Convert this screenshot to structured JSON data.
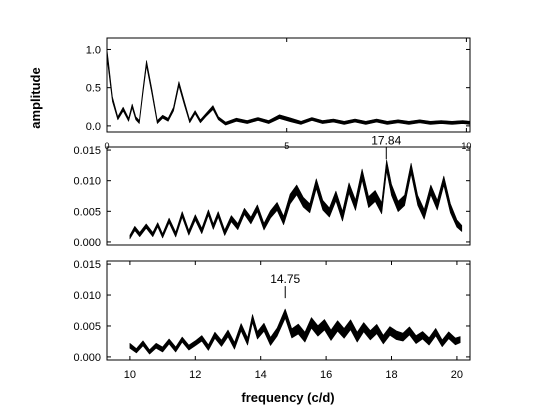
{
  "chart_data": [
    {
      "type": "area",
      "panel": "top",
      "xlim": [
        0,
        10.1
      ],
      "ylim": [
        -0.08,
        1.15
      ],
      "x_ticks": [
        0,
        5,
        10
      ],
      "x_tick_labels": [
        "0",
        "5",
        "10"
      ],
      "y_ticks": [
        0.0,
        0.5,
        1.0
      ],
      "y_tick_labels": [
        "0.0",
        "0.5",
        "1.0"
      ],
      "ylabel": "amplitude",
      "x": [
        0,
        0.05,
        0.15,
        0.3,
        0.45,
        0.6,
        0.7,
        0.8,
        0.9,
        1.0,
        1.1,
        1.25,
        1.4,
        1.55,
        1.7,
        1.85,
        2.0,
        2.15,
        2.3,
        2.45,
        2.6,
        2.75,
        2.95,
        3.1,
        3.3,
        3.6,
        3.9,
        4.2,
        4.5,
        4.8,
        5.1,
        5.4,
        5.7,
        6.0,
        6.3,
        6.6,
        6.9,
        7.2,
        7.5,
        7.8,
        8.1,
        8.4,
        8.7,
        9.0,
        9.3,
        9.6,
        9.9,
        10.1
      ],
      "y": [
        0.95,
        0.75,
        0.35,
        0.1,
        0.22,
        0.08,
        0.26,
        0.1,
        0.05,
        0.45,
        0.82,
        0.45,
        0.05,
        0.12,
        0.08,
        0.22,
        0.55,
        0.3,
        0.06,
        0.18,
        0.06,
        0.14,
        0.24,
        0.1,
        0.03,
        0.08,
        0.05,
        0.09,
        0.05,
        0.12,
        0.08,
        0.04,
        0.09,
        0.05,
        0.07,
        0.04,
        0.07,
        0.04,
        0.07,
        0.04,
        0.06,
        0.04,
        0.06,
        0.04,
        0.05,
        0.04,
        0.05,
        0.04
      ],
      "band": [
        0.1,
        0.1,
        0.06,
        0.04,
        0.05,
        0.04,
        0.05,
        0.04,
        0.04,
        0.06,
        0.07,
        0.06,
        0.04,
        0.04,
        0.04,
        0.05,
        0.06,
        0.05,
        0.04,
        0.04,
        0.04,
        0.04,
        0.05,
        0.04,
        0.04,
        0.04,
        0.04,
        0.04,
        0.04,
        0.05,
        0.05,
        0.04,
        0.04,
        0.04,
        0.04,
        0.04,
        0.04,
        0.04,
        0.04,
        0.04,
        0.04,
        0.04,
        0.04,
        0.04,
        0.04,
        0.04,
        0.04,
        0.04
      ]
    },
    {
      "type": "area",
      "panel": "middle",
      "xlim": [
        9.3,
        20.4
      ],
      "ylim": [
        -0.0005,
        0.0155
      ],
      "y_ticks": [
        0.0,
        0.005,
        0.01,
        0.015
      ],
      "y_tick_labels": [
        "0.000",
        "0.005",
        "0.010",
        "0.015"
      ],
      "annotation": {
        "text": "17.84",
        "x": 17.84,
        "y": 0.0135
      },
      "x": [
        10.0,
        10.15,
        10.3,
        10.5,
        10.7,
        10.85,
        11.0,
        11.2,
        11.4,
        11.6,
        11.8,
        12.0,
        12.2,
        12.4,
        12.55,
        12.7,
        12.9,
        13.1,
        13.3,
        13.5,
        13.7,
        13.9,
        14.1,
        14.3,
        14.5,
        14.7,
        14.9,
        15.1,
        15.3,
        15.5,
        15.7,
        15.9,
        16.1,
        16.3,
        16.5,
        16.7,
        16.9,
        17.1,
        17.3,
        17.5,
        17.7,
        17.85,
        18.0,
        18.2,
        18.4,
        18.6,
        18.8,
        19.0,
        19.2,
        19.4,
        19.6,
        19.8,
        20.0,
        20.15
      ],
      "y": [
        0.0008,
        0.0022,
        0.0012,
        0.0026,
        0.0012,
        0.0028,
        0.001,
        0.0035,
        0.0012,
        0.0045,
        0.0015,
        0.004,
        0.0018,
        0.0048,
        0.0025,
        0.0045,
        0.0015,
        0.0038,
        0.0025,
        0.005,
        0.0035,
        0.0055,
        0.0025,
        0.0045,
        0.0058,
        0.0035,
        0.007,
        0.0085,
        0.0065,
        0.0055,
        0.0095,
        0.006,
        0.0048,
        0.0075,
        0.0042,
        0.0088,
        0.006,
        0.011,
        0.0065,
        0.0075,
        0.0055,
        0.0125,
        0.0085,
        0.0058,
        0.0068,
        0.012,
        0.0068,
        0.0045,
        0.0085,
        0.006,
        0.01,
        0.0055,
        0.003,
        0.0022
      ],
      "band": [
        0.0006,
        0.0007,
        0.0007,
        0.0007,
        0.0007,
        0.0007,
        0.0007,
        0.0008,
        0.0008,
        0.0009,
        0.0008,
        0.0009,
        0.0009,
        0.0009,
        0.0009,
        0.0009,
        0.0009,
        0.001,
        0.001,
        0.001,
        0.0011,
        0.0011,
        0.0011,
        0.0012,
        0.0013,
        0.0014,
        0.0016,
        0.0016,
        0.0016,
        0.0015,
        0.0016,
        0.0016,
        0.0015,
        0.0016,
        0.0016,
        0.0017,
        0.0017,
        0.0018,
        0.0018,
        0.0018,
        0.0018,
        0.0018,
        0.0018,
        0.0017,
        0.0017,
        0.0017,
        0.0016,
        0.0016,
        0.0016,
        0.0016,
        0.0015,
        0.0015,
        0.0012,
        0.001
      ]
    },
    {
      "type": "area",
      "panel": "bottom",
      "xlim": [
        9.3,
        20.4
      ],
      "ylim": [
        -0.0005,
        0.0155
      ],
      "x_ticks": [
        10,
        12,
        14,
        16,
        18,
        20
      ],
      "x_tick_labels": [
        "10",
        "12",
        "14",
        "16",
        "18",
        "20"
      ],
      "y_ticks": [
        0.0,
        0.005,
        0.01,
        0.015
      ],
      "y_tick_labels": [
        "0.000",
        "0.005",
        "0.010",
        "0.015"
      ],
      "xlabel": "frequency (c/d)",
      "annotation": {
        "text": "14.75",
        "x": 14.75,
        "y": 0.0095
      },
      "x": [
        10.0,
        10.2,
        10.4,
        10.6,
        10.8,
        11.0,
        11.2,
        11.4,
        11.6,
        11.8,
        12.0,
        12.2,
        12.4,
        12.6,
        12.8,
        13.0,
        13.2,
        13.4,
        13.6,
        13.75,
        13.9,
        14.1,
        14.3,
        14.5,
        14.75,
        14.95,
        15.15,
        15.35,
        15.55,
        15.75,
        15.95,
        16.15,
        16.35,
        16.55,
        16.75,
        16.95,
        17.15,
        17.35,
        17.55,
        17.75,
        17.95,
        18.15,
        18.35,
        18.55,
        18.75,
        18.95,
        19.15,
        19.35,
        19.55,
        19.75,
        19.95,
        20.1
      ],
      "y": [
        0.0018,
        0.001,
        0.0022,
        0.0008,
        0.0018,
        0.0012,
        0.0025,
        0.0012,
        0.0028,
        0.0015,
        0.0022,
        0.003,
        0.0015,
        0.0035,
        0.0022,
        0.0038,
        0.0018,
        0.0048,
        0.0025,
        0.0062,
        0.0035,
        0.0048,
        0.0025,
        0.004,
        0.007,
        0.0038,
        0.0045,
        0.0032,
        0.0055,
        0.0042,
        0.0052,
        0.0035,
        0.005,
        0.0038,
        0.0052,
        0.0032,
        0.0048,
        0.0035,
        0.0045,
        0.0028,
        0.0042,
        0.0035,
        0.0032,
        0.0042,
        0.0028,
        0.0035,
        0.0025,
        0.004,
        0.0022,
        0.0035,
        0.0025,
        0.0028
      ],
      "band": [
        0.0008,
        0.0007,
        0.0008,
        0.0007,
        0.0008,
        0.0008,
        0.0008,
        0.0008,
        0.0008,
        0.0008,
        0.0008,
        0.0009,
        0.0009,
        0.001,
        0.001,
        0.0011,
        0.0011,
        0.0012,
        0.0012,
        0.0013,
        0.0012,
        0.0013,
        0.0013,
        0.0013,
        0.0015,
        0.0015,
        0.0016,
        0.0016,
        0.0017,
        0.0017,
        0.0017,
        0.0017,
        0.0017,
        0.0016,
        0.0016,
        0.0016,
        0.0015,
        0.0015,
        0.0015,
        0.0014,
        0.0014,
        0.0014,
        0.0013,
        0.0013,
        0.0013,
        0.0012,
        0.0012,
        0.0012,
        0.0011,
        0.0011,
        0.0011,
        0.001
      ]
    }
  ]
}
